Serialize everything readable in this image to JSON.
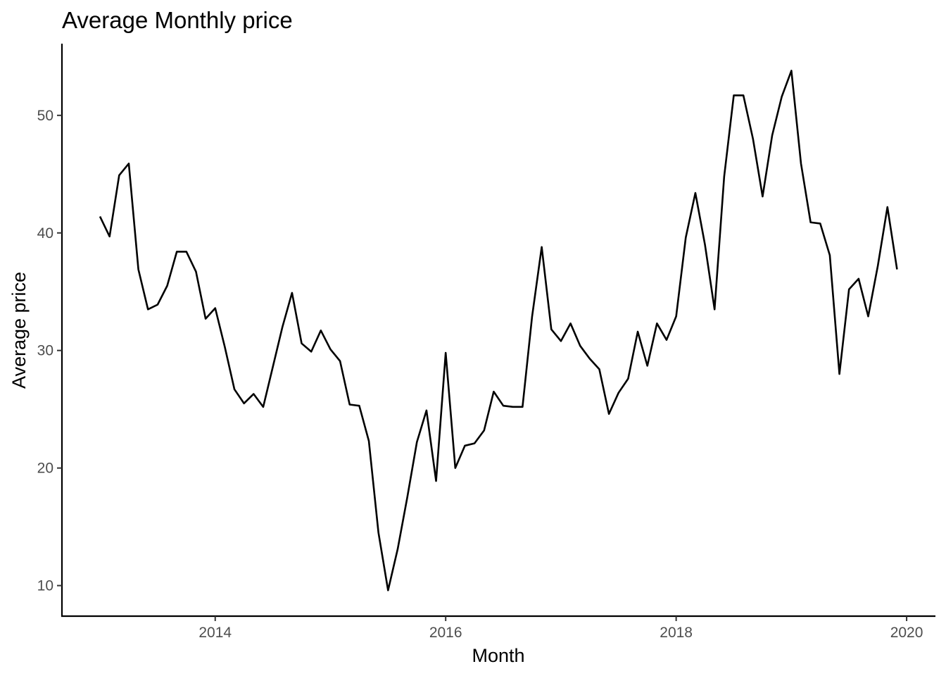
{
  "chart_data": {
    "type": "line",
    "title": "Average Monthly price",
    "xlabel": "Month",
    "ylabel": "Average price",
    "xlim": [
      2012.67,
      2020.25
    ],
    "ylim": [
      7.4,
      56.1
    ],
    "x_ticks": [
      2014,
      2016,
      2018,
      2020
    ],
    "x_tick_labels": [
      "2014",
      "2016",
      "2018",
      "2020"
    ],
    "y_ticks": [
      10,
      20,
      30,
      40,
      50
    ],
    "y_tick_labels": [
      "10",
      "20",
      "30",
      "40",
      "50"
    ],
    "grid": false,
    "legend": "none",
    "series": [
      {
        "color": "#000000",
        "x": [
          "2013-01",
          "2013-02",
          "2013-03",
          "2013-04",
          "2013-05",
          "2013-06",
          "2013-07",
          "2013-08",
          "2013-09",
          "2013-10",
          "2013-11",
          "2013-12",
          "2014-01",
          "2014-02",
          "2014-03",
          "2014-04",
          "2014-05",
          "2014-06",
          "2014-07",
          "2014-08",
          "2014-09",
          "2014-10",
          "2014-11",
          "2014-12",
          "2015-01",
          "2015-02",
          "2015-03",
          "2015-04",
          "2015-05",
          "2015-06",
          "2015-07",
          "2015-08",
          "2015-09",
          "2015-10",
          "2015-11",
          "2015-12",
          "2016-01",
          "2016-02",
          "2016-03",
          "2016-04",
          "2016-05",
          "2016-06",
          "2016-07",
          "2016-08",
          "2016-09",
          "2016-10",
          "2016-11",
          "2016-12",
          "2017-01",
          "2017-02",
          "2017-03",
          "2017-04",
          "2017-05",
          "2017-06",
          "2017-07",
          "2017-08",
          "2017-09",
          "2017-10",
          "2017-11",
          "2017-12",
          "2018-01",
          "2018-02",
          "2018-03",
          "2018-04",
          "2018-05",
          "2018-06",
          "2018-07",
          "2018-08",
          "2018-09",
          "2018-10",
          "2018-11",
          "2018-12",
          "2019-01",
          "2019-02",
          "2019-03",
          "2019-04",
          "2019-05",
          "2019-06",
          "2019-07",
          "2019-08",
          "2019-09",
          "2019-10",
          "2019-11",
          "2019-12"
        ],
        "values": [
          41.4,
          39.7,
          44.9,
          45.9,
          36.9,
          33.5,
          33.9,
          35.5,
          38.4,
          38.4,
          36.7,
          32.7,
          33.6,
          30.3,
          26.7,
          25.5,
          26.3,
          25.2,
          28.6,
          32.0,
          34.9,
          30.6,
          29.9,
          31.7,
          30.1,
          29.1,
          25.4,
          25.3,
          22.3,
          14.5,
          9.6,
          13.1,
          17.5,
          22.2,
          24.9,
          18.9,
          29.8,
          20.0,
          21.9,
          22.1,
          23.2,
          26.5,
          25.3,
          25.2,
          25.2,
          32.9,
          38.8,
          31.8,
          30.8,
          32.3,
          30.4,
          29.3,
          28.4,
          24.6,
          26.4,
          27.6,
          31.6,
          28.7,
          32.3,
          30.9,
          32.9,
          39.6,
          43.4,
          39.0,
          33.5,
          44.8,
          51.7,
          51.7,
          48.0,
          43.1,
          48.3,
          51.6,
          53.8,
          45.9,
          40.9,
          40.8,
          38.1,
          28.0,
          35.2,
          36.1,
          32.9,
          37.2,
          42.2,
          36.9
        ]
      }
    ]
  }
}
